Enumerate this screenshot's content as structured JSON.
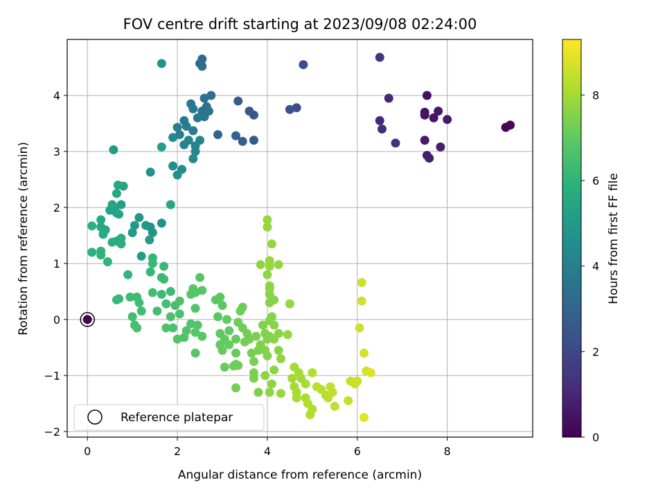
{
  "chart_data": {
    "type": "scatter",
    "title": "FOV centre drift starting at 2023/09/08 02:24:00",
    "xlabel": "Angular distance from reference (arcmin)",
    "ylabel": "Rotation from reference (arcmin)",
    "xlim": [
      -0.45,
      9.9
    ],
    "ylim": [
      -2.1,
      5.0
    ],
    "x_ticks": [
      0,
      2,
      4,
      6,
      8
    ],
    "y_ticks": [
      -2,
      -1,
      0,
      1,
      2,
      3,
      4
    ],
    "grid": true,
    "colormap": "viridis",
    "colorbar": {
      "label": "Hours from first FF file",
      "range": [
        0,
        9.3
      ],
      "ticks": [
        0,
        2,
        4,
        6,
        8
      ]
    },
    "legend": {
      "entries": [
        "Reference platepar"
      ],
      "placement": "lower-left"
    },
    "reference_point": {
      "x": 0,
      "y": 0,
      "color_value": 0
    },
    "points": [
      [
        9.3,
        3.43,
        0.1
      ],
      [
        9.4,
        3.47,
        0.15
      ],
      [
        7.55,
        4.0,
        0.4
      ],
      [
        7.5,
        3.65,
        0.45
      ],
      [
        7.5,
        3.7,
        0.5
      ],
      [
        7.7,
        3.6,
        0.55
      ],
      [
        7.8,
        3.72,
        0.6
      ],
      [
        8.0,
        3.57,
        0.65
      ],
      [
        7.5,
        3.2,
        0.7
      ],
      [
        7.55,
        2.93,
        0.75
      ],
      [
        7.6,
        2.88,
        0.8
      ],
      [
        7.85,
        3.08,
        0.85
      ],
      [
        6.7,
        3.95,
        1.0
      ],
      [
        6.5,
        3.55,
        1.1
      ],
      [
        6.55,
        3.4,
        1.2
      ],
      [
        6.85,
        3.15,
        1.3
      ],
      [
        6.5,
        4.68,
        1.4
      ],
      [
        4.8,
        4.55,
        2.2
      ],
      [
        4.65,
        3.78,
        2.2
      ],
      [
        4.5,
        3.75,
        2.3
      ],
      [
        3.7,
        3.65,
        2.5
      ],
      [
        3.6,
        3.72,
        2.6
      ],
      [
        3.35,
        3.9,
        2.7
      ],
      [
        3.7,
        3.2,
        2.6
      ],
      [
        3.45,
        3.18,
        2.8
      ],
      [
        3.3,
        3.28,
        2.9
      ],
      [
        2.9,
        3.3,
        3.0
      ],
      [
        2.55,
        4.65,
        3.1
      ],
      [
        2.5,
        4.57,
        3.2
      ],
      [
        2.55,
        4.52,
        3.3
      ],
      [
        2.75,
        4.0,
        3.4
      ],
      [
        2.6,
        3.95,
        3.5
      ],
      [
        2.65,
        3.8,
        3.5
      ],
      [
        2.55,
        3.72,
        3.5
      ],
      [
        2.7,
        3.72,
        3.6
      ],
      [
        2.6,
        3.62,
        3.6
      ],
      [
        2.45,
        3.6,
        3.7
      ],
      [
        2.3,
        3.85,
        3.7
      ],
      [
        2.35,
        3.76,
        3.8
      ],
      [
        2.15,
        3.55,
        3.8
      ],
      [
        2.2,
        3.45,
        3.9
      ],
      [
        2.35,
        3.37,
        3.9
      ],
      [
        2.0,
        3.43,
        4.0
      ],
      [
        2.05,
        3.3,
        4.0
      ],
      [
        2.25,
        3.2,
        4.1
      ],
      [
        2.15,
        3.12,
        4.1
      ],
      [
        2.4,
        3.1,
        4.2
      ],
      [
        2.5,
        3.2,
        4.2
      ],
      [
        2.4,
        3.0,
        4.3
      ],
      [
        2.35,
        2.87,
        4.3
      ],
      [
        1.9,
        3.25,
        4.4
      ],
      [
        2.1,
        2.68,
        4.5
      ],
      [
        1.9,
        2.74,
        4.5
      ],
      [
        2.0,
        2.58,
        4.6
      ],
      [
        1.4,
        2.63,
        4.7
      ],
      [
        1.65,
        1.72,
        4.7
      ],
      [
        1.4,
        1.65,
        4.8
      ],
      [
        1.45,
        1.55,
        4.8
      ],
      [
        1.3,
        1.68,
        4.9
      ],
      [
        1.15,
        1.82,
        4.9
      ],
      [
        1.0,
        1.55,
        5.0
      ],
      [
        1.05,
        1.68,
        5.0
      ],
      [
        1.38,
        1.42,
        5.1
      ],
      [
        1.2,
        1.13,
        5.1
      ],
      [
        0.6,
        1.98,
        5.2
      ],
      [
        0.75,
        2.05,
        5.2
      ],
      [
        0.65,
        1.9,
        5.3
      ],
      [
        0.5,
        1.95,
        5.3
      ],
      [
        0.7,
        1.88,
        5.4
      ],
      [
        0.8,
        2.38,
        5.4
      ],
      [
        0.55,
        2.05,
        5.4
      ],
      [
        0.65,
        2.25,
        5.5
      ],
      [
        0.68,
        2.4,
        5.5
      ],
      [
        1.85,
        2.05,
        5.5
      ],
      [
        0.3,
        1.78,
        5.6
      ],
      [
        0.4,
        1.6,
        5.6
      ],
      [
        0.3,
        1.65,
        5.6
      ],
      [
        0.35,
        1.52,
        5.7
      ],
      [
        0.65,
        1.4,
        5.7
      ],
      [
        0.55,
        1.38,
        5.8
      ],
      [
        0.75,
        1.45,
        5.8
      ],
      [
        0.75,
        1.35,
        5.8
      ],
      [
        0.1,
        1.67,
        5.9
      ],
      [
        0.1,
        1.2,
        5.9
      ],
      [
        0.3,
        1.22,
        6.0
      ],
      [
        0.3,
        1.15,
        6.0
      ],
      [
        0.45,
        1.03,
        6.0
      ],
      [
        1.65,
        3.08,
        5.2
      ],
      [
        0.58,
        3.03,
        5.0
      ],
      [
        1.65,
        4.57,
        4.7
      ],
      [
        0.9,
        0.8,
        6.1
      ],
      [
        1.4,
        0.85,
        6.1
      ],
      [
        1.45,
        1.1,
        6.1
      ],
      [
        1.45,
        1.0,
        6.2
      ],
      [
        1.7,
        0.95,
        6.2
      ],
      [
        1.65,
        0.75,
        6.2
      ],
      [
        1.7,
        0.72,
        6.3
      ],
      [
        1.65,
        0.45,
        6.3
      ],
      [
        1.85,
        0.5,
        6.3
      ],
      [
        1.45,
        0.48,
        6.4
      ],
      [
        1.1,
        0.4,
        6.3
      ],
      [
        0.95,
        0.4,
        6.3
      ],
      [
        1.15,
        0.3,
        6.4
      ],
      [
        1.2,
        0.15,
        6.4
      ],
      [
        1.0,
        0.05,
        6.4
      ],
      [
        1.05,
        -0.1,
        6.5
      ],
      [
        1.1,
        -0.15,
        6.5
      ],
      [
        0.65,
        0.35,
        6.2
      ],
      [
        0.7,
        0.37,
        6.2
      ],
      [
        1.55,
        0.15,
        6.5
      ],
      [
        1.75,
        0.28,
        6.5
      ],
      [
        1.95,
        0.25,
        6.5
      ],
      [
        2.05,
        0.33,
        6.6
      ],
      [
        2.05,
        0.1,
        6.6
      ],
      [
        1.85,
        0.05,
        6.6
      ],
      [
        1.75,
        -0.15,
        6.6
      ],
      [
        1.9,
        -0.15,
        6.6
      ],
      [
        2.2,
        -0.2,
        6.7
      ],
      [
        2.15,
        -0.32,
        6.7
      ],
      [
        2.0,
        -0.35,
        6.7
      ],
      [
        2.3,
        -0.08,
        6.7
      ],
      [
        2.4,
        0.2,
        6.7
      ],
      [
        2.5,
        0.75,
        6.8
      ],
      [
        2.3,
        0.45,
        6.8
      ],
      [
        2.35,
        0.55,
        6.8
      ],
      [
        2.4,
        0.48,
        6.8
      ],
      [
        2.55,
        0.52,
        6.8
      ],
      [
        2.45,
        -0.1,
        6.8
      ],
      [
        2.4,
        -0.23,
        6.8
      ],
      [
        2.55,
        -0.3,
        6.8
      ],
      [
        2.4,
        -0.6,
        6.8
      ],
      [
        2.85,
        0.35,
        6.9
      ],
      [
        2.95,
        0.4,
        6.9
      ],
      [
        3.0,
        0.25,
        6.9
      ],
      [
        2.9,
        0.05,
        6.9
      ],
      [
        3.1,
        0.0,
        7.0
      ],
      [
        2.95,
        -0.25,
        7.0
      ],
      [
        3.05,
        -0.35,
        7.0
      ],
      [
        2.95,
        -0.45,
        7.0
      ],
      [
        3.15,
        -0.2,
        7.0
      ],
      [
        3.15,
        -0.45,
        7.1
      ],
      [
        3.0,
        -0.55,
        7.1
      ],
      [
        3.3,
        -0.35,
        7.1
      ],
      [
        3.3,
        -0.6,
        7.1
      ],
      [
        3.3,
        -0.8,
        7.1
      ],
      [
        3.05,
        -0.85,
        7.1
      ],
      [
        3.25,
        -0.83,
        7.2
      ],
      [
        3.35,
        -0.82,
        7.2
      ],
      [
        3.35,
        -0.05,
        7.2
      ],
      [
        3.45,
        0.22,
        7.2
      ],
      [
        3.4,
        0.15,
        7.2
      ],
      [
        3.45,
        -0.15,
        7.2
      ],
      [
        3.55,
        -0.25,
        7.3
      ],
      [
        3.5,
        -0.4,
        7.3
      ],
      [
        3.6,
        -0.35,
        7.3
      ],
      [
        3.3,
        -1.22,
        7.3
      ],
      [
        3.65,
        -0.6,
        7.3
      ],
      [
        3.7,
        -0.75,
        7.4
      ],
      [
        3.75,
        -0.3,
        7.4
      ],
      [
        3.8,
        -0.55,
        7.4
      ],
      [
        3.7,
        -0.95,
        7.4
      ],
      [
        3.7,
        -1.05,
        7.4
      ],
      [
        3.8,
        -1.3,
        7.4
      ],
      [
        3.9,
        -0.1,
        7.5
      ],
      [
        3.95,
        -0.25,
        7.5
      ],
      [
        4.05,
        -0.3,
        7.5
      ],
      [
        4.0,
        -0.35,
        7.5
      ],
      [
        3.85,
        -0.45,
        7.5
      ],
      [
        3.95,
        -0.55,
        7.5
      ],
      [
        4.0,
        -0.65,
        7.5
      ],
      [
        4.05,
        -0.02,
        7.6
      ],
      [
        4.1,
        0.05,
        7.6
      ],
      [
        4.15,
        -0.1,
        7.6
      ],
      [
        4.05,
        0.3,
        7.6
      ],
      [
        4.05,
        0.45,
        7.6
      ],
      [
        4.15,
        0.35,
        7.6
      ],
      [
        4.25,
        -0.25,
        7.6
      ],
      [
        4.15,
        -0.35,
        7.6
      ],
      [
        4.25,
        -0.55,
        7.6
      ],
      [
        4.3,
        -0.7,
        7.7
      ],
      [
        3.95,
        -1.0,
        7.7
      ],
      [
        4.1,
        -1.15,
        7.7
      ],
      [
        4.05,
        -1.3,
        7.7
      ],
      [
        4.15,
        -0.9,
        7.7
      ],
      [
        4.0,
        0.8,
        7.7
      ],
      [
        4.05,
        0.55,
        7.7
      ],
      [
        4.05,
        0.6,
        7.7
      ],
      [
        3.85,
        0.98,
        7.7
      ],
      [
        4.05,
        1.05,
        7.8
      ],
      [
        4.05,
        0.95,
        7.8
      ],
      [
        4.25,
        0.98,
        7.8
      ],
      [
        4.1,
        1.35,
        7.8
      ],
      [
        4.0,
        1.65,
        7.8
      ],
      [
        4.0,
        1.78,
        7.8
      ],
      [
        4.45,
        -0.27,
        7.8
      ],
      [
        4.5,
        0.28,
        7.8
      ],
      [
        4.3,
        -1.32,
        7.8
      ],
      [
        4.6,
        -0.85,
        8.0
      ],
      [
        4.7,
        -0.95,
        8.0
      ],
      [
        4.75,
        -1.05,
        8.0
      ],
      [
        4.55,
        -1.05,
        8.0
      ],
      [
        4.6,
        -1.2,
        8.0
      ],
      [
        4.65,
        -1.3,
        8.1
      ],
      [
        4.65,
        -1.4,
        8.1
      ],
      [
        4.85,
        -1.15,
        8.1
      ],
      [
        4.85,
        -1.4,
        8.1
      ],
      [
        4.9,
        -1.5,
        8.2
      ],
      [
        5.0,
        -1.6,
        8.2
      ],
      [
        4.95,
        -1.7,
        8.2
      ],
      [
        5.0,
        -0.95,
        8.2
      ],
      [
        5.1,
        -1.2,
        8.3
      ],
      [
        5.2,
        -1.25,
        8.3
      ],
      [
        5.3,
        -1.35,
        8.3
      ],
      [
        5.35,
        -1.4,
        8.3
      ],
      [
        5.4,
        -1.2,
        8.4
      ],
      [
        5.45,
        -1.3,
        8.4
      ],
      [
        5.5,
        -1.55,
        8.4
      ],
      [
        5.8,
        -1.45,
        8.5
      ],
      [
        5.85,
        -1.1,
        8.5
      ],
      [
        5.95,
        -1.15,
        8.5
      ],
      [
        6.0,
        -1.1,
        8.6
      ],
      [
        6.05,
        -0.15,
        8.6
      ],
      [
        6.1,
        0.66,
        8.6
      ],
      [
        6.1,
        0.33,
        8.6
      ],
      [
        6.15,
        -0.6,
        8.7
      ],
      [
        6.2,
        -0.92,
        8.7
      ],
      [
        6.3,
        -0.95,
        8.8
      ],
      [
        6.15,
        -1.75,
        8.9
      ]
    ]
  }
}
